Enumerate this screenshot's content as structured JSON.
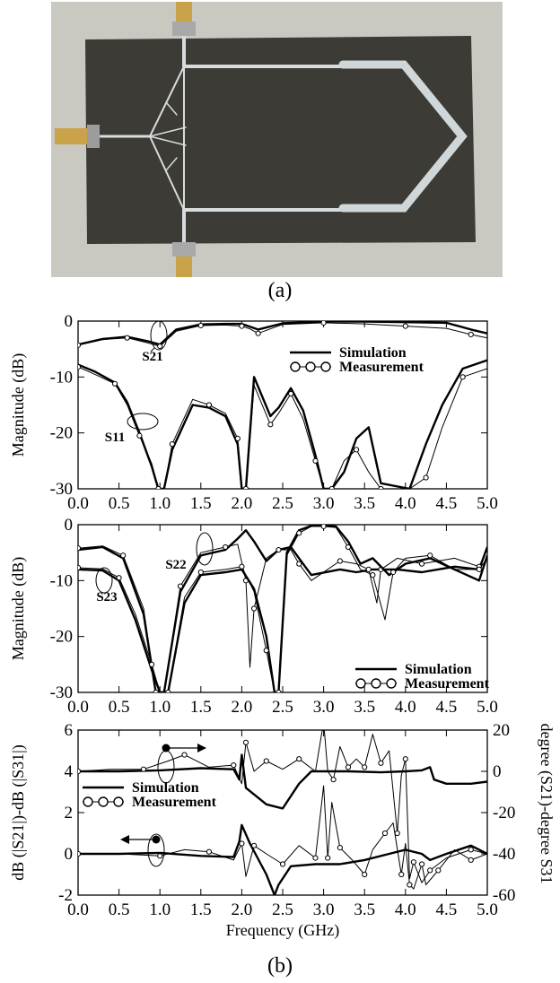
{
  "captions": {
    "a": "(a)",
    "b": "(b)"
  },
  "photo": {
    "subject": "fabricated microstrip circuit on dark substrate with three SMA connectors",
    "colors": {
      "background": "#c9c9c2",
      "substrate": "#3c3b36",
      "trace": "#d9dcdc",
      "connector": "#c9a24a"
    }
  },
  "chart_data": [
    {
      "type": "line",
      "ylabel": "Magnitude (dB)",
      "xlim": [
        0,
        5
      ],
      "ylim": [
        -30,
        0
      ],
      "xticks": [
        "0.0",
        "0.5",
        "1.0",
        "1.5",
        "2.0",
        "2.5",
        "3.0",
        "3.5",
        "4.0",
        "4.5",
        "5.0"
      ],
      "yticks": [
        "0",
        "-10",
        "-20",
        "-30"
      ],
      "legend": {
        "position": "top-right",
        "entries": [
          "Simulation",
          "Measurement"
        ]
      },
      "annotations": [
        "S21",
        "S11"
      ],
      "series": [
        {
          "name": "S21",
          "style": "simulation",
          "x": [
            0,
            0.3,
            0.6,
            0.85,
            1.0,
            1.2,
            1.5,
            1.8,
            2.0,
            2.1,
            2.2,
            2.5,
            3.0,
            3.5,
            4.0,
            4.5,
            4.8,
            5.0
          ],
          "y": [
            -4.2,
            -3.2,
            -2.8,
            -3.6,
            -4.2,
            -1.5,
            -0.6,
            -0.5,
            -0.5,
            -1.0,
            -1.5,
            -0.4,
            -0.1,
            -0.1,
            -0.2,
            -0.3,
            -1.5,
            -2.2
          ]
        },
        {
          "name": "S21",
          "style": "measurement",
          "x": [
            0,
            0.3,
            0.6,
            0.85,
            1.0,
            1.2,
            1.5,
            1.8,
            2.0,
            2.1,
            2.2,
            2.5,
            3.0,
            3.5,
            4.0,
            4.5,
            4.8,
            5.0
          ],
          "y": [
            -4.3,
            -3.3,
            -3.0,
            -3.9,
            -4.5,
            -1.8,
            -0.8,
            -0.7,
            -0.9,
            -1.4,
            -2.2,
            -0.6,
            -0.3,
            -0.5,
            -0.9,
            -1.3,
            -2.4,
            -3.0
          ]
        },
        {
          "name": "S11",
          "style": "simulation",
          "x": [
            0,
            0.2,
            0.45,
            0.6,
            0.75,
            0.9,
            0.98,
            1.05,
            1.15,
            1.4,
            1.6,
            1.8,
            1.95,
            2.0,
            2.05,
            2.15,
            2.35,
            2.45,
            2.6,
            2.75,
            2.9,
            3.0,
            3.1,
            3.25,
            3.4,
            3.55,
            3.7,
            4.05,
            4.25,
            4.45,
            4.7,
            5.0
          ],
          "y": [
            -7.8,
            -9.0,
            -11.0,
            -14.5,
            -20.0,
            -26.0,
            -30.0,
            -30.0,
            -23.0,
            -15.0,
            -15.5,
            -17.0,
            -22.0,
            -30.0,
            -30.0,
            -10.0,
            -17.0,
            -15.5,
            -12.0,
            -16.0,
            -24.0,
            -30.0,
            -30.0,
            -27.0,
            -21.0,
            -19.0,
            -29.0,
            -30.0,
            -22.0,
            -15.0,
            -8.5,
            -7.0
          ]
        },
        {
          "name": "S11",
          "style": "measurement",
          "x": [
            0,
            0.2,
            0.45,
            0.6,
            0.75,
            0.9,
            0.98,
            1.05,
            1.15,
            1.4,
            1.6,
            1.8,
            1.95,
            2.0,
            2.05,
            2.15,
            2.35,
            2.45,
            2.6,
            2.75,
            2.9,
            3.0,
            3.1,
            3.25,
            3.4,
            3.55,
            3.7,
            4.05,
            4.25,
            4.45,
            4.7,
            5.0
          ],
          "y": [
            -8.2,
            -9.5,
            -11.2,
            -15.0,
            -20.5,
            -25.5,
            -30.0,
            -30.0,
            -22.0,
            -14.0,
            -15.0,
            -16.5,
            -21.0,
            -30.0,
            -30.0,
            -11.5,
            -18.5,
            -16.5,
            -13.0,
            -17.5,
            -25.0,
            -30.0,
            -30.0,
            -25.0,
            -23.0,
            -27.0,
            -30.0,
            -30.0,
            -28.0,
            -19.0,
            -10.0,
            -8.5
          ]
        }
      ]
    },
    {
      "type": "line",
      "ylabel": "Magnitude (dB)",
      "xlim": [
        0,
        5
      ],
      "ylim": [
        -30,
        0
      ],
      "xticks": [
        "0.0",
        "0.5",
        "1.0",
        "1.5",
        "2.0",
        "2.5",
        "3.0",
        "3.5",
        "4.0",
        "4.5",
        "5.0"
      ],
      "yticks": [
        "0",
        "-10",
        "-20",
        "-30"
      ],
      "legend": {
        "position": "bottom-right",
        "entries": [
          "Simulation",
          "Measurement"
        ]
      },
      "annotations": [
        "S22",
        "S23"
      ],
      "series": [
        {
          "name": "S22",
          "style": "simulation",
          "x": [
            0,
            0.3,
            0.55,
            0.8,
            0.95,
            1.05,
            1.25,
            1.5,
            1.8,
            1.95,
            2.05,
            2.15,
            2.3,
            2.45,
            2.6,
            2.7,
            2.85,
            3.2,
            3.4,
            3.6,
            3.9,
            4.2,
            4.6,
            4.9,
            5.0
          ],
          "y": [
            -4.5,
            -4.0,
            -6.0,
            -16.0,
            -30.0,
            -30.0,
            -12.0,
            -5.5,
            -4.5,
            -2.5,
            -1.0,
            -3.0,
            -6.5,
            -4.5,
            -4.0,
            -6.0,
            -9.0,
            -8.0,
            -8.5,
            -8.0,
            -8.0,
            -8.5,
            -7.5,
            -8.0,
            -4.0
          ]
        },
        {
          "name": "S22",
          "style": "measurement",
          "x": [
            0,
            0.3,
            0.55,
            0.8,
            0.95,
            1.05,
            1.25,
            1.5,
            1.8,
            1.95,
            2.05,
            2.1,
            2.15,
            2.3,
            2.45,
            2.6,
            2.7,
            2.85,
            3.2,
            3.4,
            3.55,
            3.65,
            3.7,
            3.9,
            4.2,
            4.6,
            4.9,
            5.0
          ],
          "y": [
            -4.2,
            -3.8,
            -5.5,
            -15.0,
            -30.0,
            -30.0,
            -11.0,
            -5.0,
            -4.0,
            -3.5,
            -10.0,
            -25.5,
            -15.0,
            -6.0,
            -4.5,
            -4.5,
            -7.0,
            -10.0,
            -6.5,
            -7.0,
            -8.0,
            -14.0,
            -8.0,
            -6.0,
            -7.0,
            -6.0,
            -7.5,
            -4.2
          ]
        },
        {
          "name": "S23",
          "style": "simulation",
          "x": [
            0,
            0.3,
            0.5,
            0.7,
            0.9,
            1.0,
            1.1,
            1.3,
            1.5,
            1.8,
            2.0,
            2.15,
            2.3,
            2.4,
            2.45,
            2.55,
            2.7,
            2.85,
            3.0,
            3.15,
            3.3,
            3.45,
            3.6,
            3.8,
            4.0,
            4.3,
            4.6,
            4.9,
            5.0
          ],
          "y": [
            -8.0,
            -8.2,
            -10.0,
            -17.0,
            -26.0,
            -30.0,
            -30.0,
            -14.0,
            -9.0,
            -8.5,
            -8.0,
            -11.5,
            -20.0,
            -30.0,
            -30.0,
            -5.0,
            -1.0,
            -0.2,
            -0.2,
            -0.3,
            -3.0,
            -7.0,
            -6.0,
            -9.0,
            -7.0,
            -6.0,
            -8.0,
            -10.0,
            -5.5
          ]
        },
        {
          "name": "S23",
          "style": "measurement",
          "x": [
            0,
            0.3,
            0.5,
            0.7,
            0.9,
            1.0,
            1.1,
            1.3,
            1.5,
            1.8,
            2.0,
            2.15,
            2.3,
            2.4,
            2.45,
            2.55,
            2.7,
            2.85,
            3.0,
            3.15,
            3.3,
            3.45,
            3.6,
            3.75,
            3.85,
            4.0,
            4.3,
            4.6,
            4.9,
            5.0
          ],
          "y": [
            -7.7,
            -7.9,
            -9.5,
            -16.0,
            -25.0,
            -30.0,
            -30.0,
            -13.0,
            -8.5,
            -8.0,
            -7.5,
            -12.0,
            -22.5,
            -30.0,
            -30.0,
            -5.5,
            -1.5,
            -0.3,
            -0.3,
            -0.5,
            -4.0,
            -8.0,
            -9.0,
            -17.0,
            -8.5,
            -6.0,
            -5.5,
            -8.0,
            -8.0,
            -6.0
          ]
        }
      ]
    },
    {
      "type": "line",
      "xlabel": "Frequency (GHz)",
      "ylabel": "dB (|S21|)-dB (|S31|)",
      "ylabel_right": "degree (S21)-degree S31",
      "xlim": [
        0,
        5
      ],
      "ylim": [
        -2,
        6
      ],
      "ylim_right": [
        -60,
        20
      ],
      "xticks": [
        "0.0",
        "0.5",
        "1.0",
        "1.5",
        "2.0",
        "2.5",
        "3.0",
        "3.5",
        "4.0",
        "4.5",
        "5.0"
      ],
      "yticks": [
        "6",
        "4",
        "2",
        "0",
        "-2"
      ],
      "yticks_right": [
        "20",
        "0",
        "-20",
        "-40",
        "-60"
      ],
      "legend": {
        "position": "middle-left",
        "entries": [
          "Simulation",
          "Measurement"
        ]
      },
      "series": [
        {
          "name": "amplitude",
          "style": "simulation",
          "axis": "left",
          "x": [
            0,
            0.5,
            1.0,
            1.5,
            1.9,
            1.97,
            2.0,
            2.1,
            2.3,
            2.4,
            2.45,
            2.6,
            2.9,
            3.2,
            3.5,
            3.8,
            4.0,
            4.2,
            4.3,
            4.5,
            4.8,
            5.0
          ],
          "y": [
            0.0,
            0.0,
            0.05,
            -0.1,
            -0.15,
            0.6,
            1.4,
            0.5,
            -1.0,
            -2.0,
            -1.5,
            -0.6,
            -0.5,
            -0.5,
            -0.3,
            0.0,
            0.2,
            0.0,
            -0.3,
            0.0,
            0.4,
            0.0
          ]
        },
        {
          "name": "amplitude",
          "style": "measurement",
          "axis": "left",
          "x": [
            0,
            0.5,
            1.0,
            1.3,
            1.6,
            1.9,
            2.0,
            2.05,
            2.15,
            2.3,
            2.5,
            2.7,
            2.9,
            3.0,
            3.05,
            3.1,
            3.2,
            3.35,
            3.5,
            3.6,
            3.75,
            3.85,
            3.95,
            4.0,
            4.05,
            4.1,
            4.2,
            4.25,
            4.4,
            4.6,
            4.8,
            5.0
          ],
          "y": [
            0.0,
            0.0,
            -0.1,
            0.2,
            0.1,
            -0.3,
            0.5,
            -1.1,
            0.4,
            0.0,
            -0.5,
            0.4,
            -0.2,
            3.3,
            -0.2,
            2.5,
            0.3,
            -0.3,
            -1.0,
            0.2,
            1.0,
            1.5,
            -1.0,
            0.5,
            -1.5,
            -1.7,
            -0.5,
            -1.5,
            -0.8,
            0.2,
            -0.3,
            0.0
          ]
        },
        {
          "name": "phase",
          "style": "simulation",
          "axis": "right",
          "x": [
            0,
            0.5,
            1.0,
            1.5,
            1.9,
            1.97,
            2.0,
            2.05,
            2.3,
            2.5,
            2.7,
            2.85,
            3.0,
            3.3,
            3.7,
            4.0,
            4.2,
            4.3,
            4.35,
            4.5,
            4.8,
            5.0
          ],
          "y": [
            0.0,
            0.0,
            0.5,
            1.5,
            1.0,
            -4.0,
            8.0,
            -8.0,
            -16.0,
            -18.0,
            -6.0,
            0.0,
            0.0,
            0.0,
            -0.5,
            0.0,
            0.5,
            2.0,
            -4.0,
            -6.0,
            -6.0,
            -5.0
          ]
        },
        {
          "name": "phase",
          "style": "measurement",
          "axis": "right",
          "x": [
            0,
            0.4,
            0.8,
            1.1,
            1.3,
            1.6,
            1.9,
            2.0,
            2.05,
            2.15,
            2.3,
            2.5,
            2.7,
            2.9,
            3.0,
            3.05,
            3.12,
            3.2,
            3.3,
            3.4,
            3.5,
            3.6,
            3.7,
            3.8,
            3.9,
            3.95,
            4.0,
            4.05,
            4.1,
            4.2,
            4.3,
            4.5,
            4.8,
            5.0
          ],
          "y": [
            0.0,
            1.0,
            1.0,
            5.0,
            8.0,
            2.0,
            3.0,
            -6.0,
            14.0,
            0.0,
            5.0,
            1.0,
            6.0,
            0.0,
            24.0,
            0.0,
            -4.0,
            12.0,
            2.0,
            6.0,
            2.0,
            18.0,
            4.0,
            10.0,
            -30.0,
            -2.0,
            6.0,
            -52.0,
            -44.0,
            -54.0,
            -48.0,
            -42.0,
            -38.0,
            -40.0
          ]
        }
      ]
    }
  ]
}
